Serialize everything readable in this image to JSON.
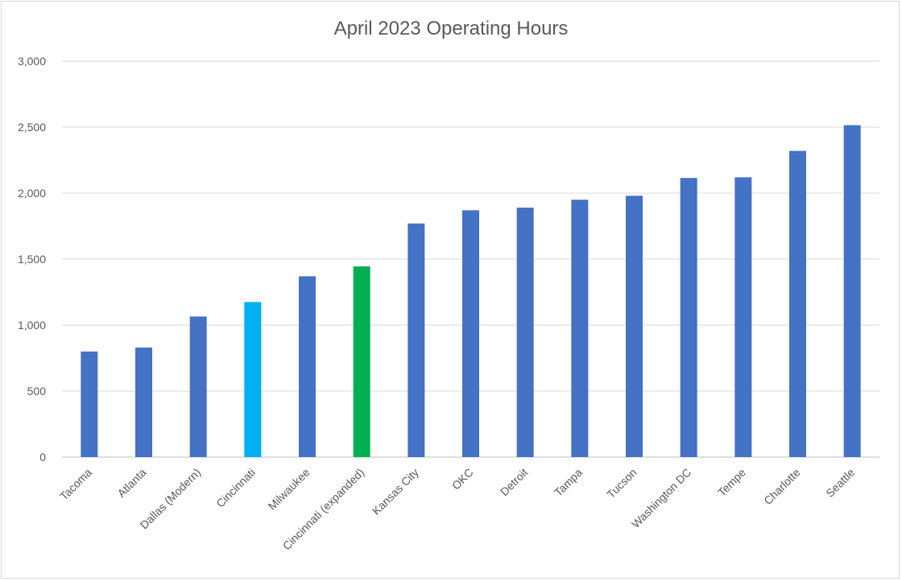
{
  "chart_data": {
    "type": "bar",
    "title": "April 2023 Operating Hours",
    "xlabel": "",
    "ylabel": "",
    "ylim": [
      0,
      3000
    ],
    "yticks": [
      0,
      500,
      1000,
      1500,
      2000,
      2500,
      3000
    ],
    "ytick_labels": [
      "0",
      "500",
      "1,000",
      "1,500",
      "2,000",
      "2,500",
      "3,000"
    ],
    "grid": true,
    "legend": "none",
    "categories": [
      "Tacoma",
      "Atlanta",
      "Dallas (Modern)",
      "Cincinnati",
      "Milwaukee",
      "Cincinnati (expanded)",
      "Kansas City",
      "OKC",
      "Detroit",
      "Tampa",
      "Tucson",
      "Washington DC",
      "Tempe",
      "Charlotte",
      "Seattle"
    ],
    "values": [
      800,
      830,
      1065,
      1175,
      1370,
      1445,
      1770,
      1870,
      1890,
      1950,
      1980,
      2115,
      2120,
      2320,
      2515
    ],
    "colors": [
      "#4472C4",
      "#4472C4",
      "#4472C4",
      "#00B0F0",
      "#4472C4",
      "#00B050",
      "#4472C4",
      "#4472C4",
      "#4472C4",
      "#4472C4",
      "#4472C4",
      "#4472C4",
      "#4472C4",
      "#4472C4",
      "#4472C4"
    ]
  }
}
